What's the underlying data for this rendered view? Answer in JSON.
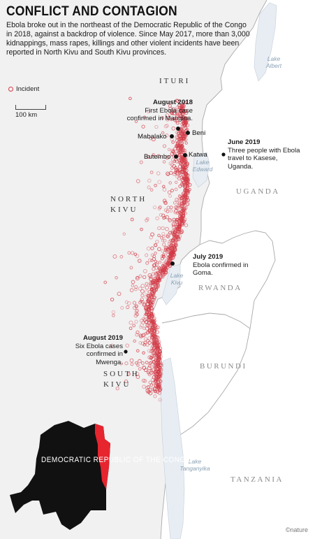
{
  "title": "CONFLICT AND CONTAGION",
  "intro": "Ebola broke out in the northeast of the Democratic Republic of the Congo in 2018, against a backdrop of violence. Since May 2017, more than 3,000 kidnappings, mass rapes, killings and other violent incidents have been reported in North Kivu and South Kivu provinces.",
  "legend": {
    "incident_label": "Incident",
    "incident_color": "#d33a46"
  },
  "scale": {
    "label": "100 km"
  },
  "annotations": [
    {
      "date": "August 2018",
      "text": "First Ebola case confirmed in Mangina."
    },
    {
      "date": "June 2019",
      "text": "Three people with Ebola travel to Kasese, Uganda."
    },
    {
      "date": "July 2019",
      "text": "Ebola confirmed in Goma."
    },
    {
      "date": "August 2019",
      "text": "Six Ebola cases confirmed in Mwenga."
    }
  ],
  "places": [
    "Mabalako",
    "Beni",
    "Butembo",
    "Katwa"
  ],
  "regions": {
    "ituri": "ITURI",
    "north_kivu": "NORTH KIVU",
    "south_kivu": "SOUTH KIVU"
  },
  "countries": {
    "uganda": "UGANDA",
    "rwanda": "RWANDA",
    "burundi": "BURUNDI",
    "tanzania": "TANZANIA"
  },
  "lakes": [
    "Lake Albert",
    "Lake Edward",
    "Lake Kivu",
    "Lake Tanganyika"
  ],
  "inset": {
    "label": "DEMOCRATIC REPUBLIC OF THE CONGO"
  },
  "credit": "©nature",
  "colors": {
    "drc_land": "#f1f1f1",
    "other_land": "#ffffff",
    "incident": "#d33a46",
    "focus": "#e6252f",
    "inset_dark": "#111111"
  }
}
